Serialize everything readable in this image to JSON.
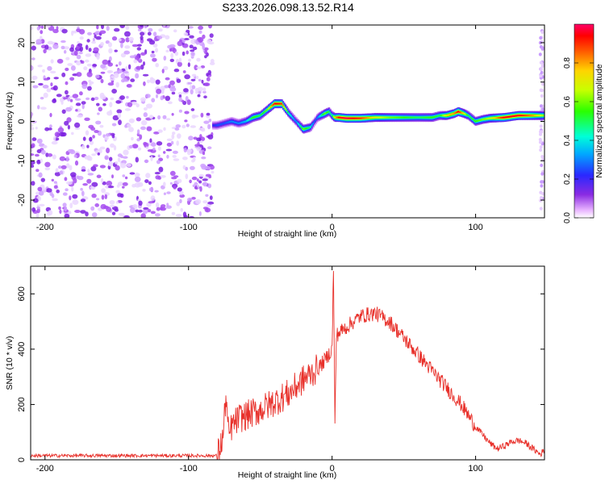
{
  "title": "S233.2026.098.13.52.R14",
  "chart_data": [
    {
      "type": "heatmap",
      "xlabel": "Height of straight line (km)",
      "ylabel": "Frequency (Hz)",
      "xlim": [
        -210,
        148
      ],
      "ylim": [
        -24.5,
        24.5
      ],
      "xticks": [
        -200,
        -100,
        0,
        100
      ],
      "yticks": [
        -20,
        -10,
        0,
        10,
        20
      ],
      "colorbar": {
        "label": "Normalized spectral amplitude",
        "range": [
          0,
          1
        ],
        "ticks": [
          0.0,
          0.2,
          0.4,
          0.6,
          0.8
        ]
      },
      "noise_region_km": [
        -210,
        -83
      ],
      "ridge": {
        "x": [
          -83,
          -80,
          -75,
          -70,
          -65,
          -60,
          -55,
          -50,
          -45,
          -40,
          -35,
          -30,
          -25,
          -20,
          -15,
          -12,
          -10,
          -5,
          -2,
          0,
          2,
          5,
          10,
          20,
          30,
          40,
          50,
          60,
          70,
          75,
          80,
          85,
          88,
          92,
          95,
          100,
          105,
          110,
          120,
          130,
          140,
          148
        ],
        "freq": [
          -1,
          -1,
          -0.5,
          0,
          -0.5,
          0,
          1,
          1.5,
          3,
          4.5,
          4.5,
          2,
          0,
          -2,
          -1.5,
          0,
          1,
          2,
          2.5,
          1.5,
          1,
          1,
          0.8,
          0.8,
          1,
          1,
          1,
          1,
          1,
          1.5,
          1.5,
          2,
          2.5,
          2,
          1.5,
          0,
          0.5,
          0.8,
          1,
          1.5,
          1.5,
          1.5
        ],
        "amp": [
          0.2,
          0.25,
          0.25,
          0.3,
          0.3,
          0.35,
          0.55,
          0.5,
          0.6,
          0.95,
          0.9,
          0.45,
          0.3,
          0.6,
          0.45,
          0.25,
          0.3,
          0.6,
          0.5,
          0.45,
          0.75,
          0.95,
          0.98,
          0.9,
          0.7,
          0.6,
          0.55,
          0.5,
          0.55,
          0.5,
          0.75,
          0.8,
          0.95,
          0.7,
          0.5,
          0.55,
          0.6,
          0.65,
          0.95,
          0.95,
          0.8,
          0.6
        ]
      }
    },
    {
      "type": "line",
      "xlabel": "Height of straight line (km)",
      "ylabel": "SNR (10 * v/v)",
      "xlim": [
        -210,
        148
      ],
      "ylim": [
        0,
        700
      ],
      "xticks": [
        -200,
        -100,
        0,
        100
      ],
      "yticks": [
        0,
        200,
        400,
        600
      ],
      "series": [
        {
          "name": "SNR",
          "color": "#e8302a",
          "x": [
            -210,
            -180,
            -150,
            -120,
            -90,
            -80,
            -76,
            -74,
            -72,
            -70,
            -65,
            -60,
            -50,
            -40,
            -30,
            -20,
            -10,
            -5,
            0,
            1,
            2,
            3,
            5,
            10,
            20,
            30,
            40,
            50,
            60,
            70,
            80,
            90,
            100,
            110,
            115,
            120,
            125,
            130,
            135,
            140,
            145,
            148
          ],
          "y": [
            15,
            15,
            15,
            15,
            15,
            15,
            80,
            230,
            80,
            120,
            150,
            160,
            180,
            210,
            240,
            290,
            330,
            360,
            400,
            700,
            120,
            450,
            460,
            480,
            520,
            530,
            500,
            440,
            380,
            320,
            260,
            200,
            120,
            60,
            40,
            50,
            65,
            70,
            60,
            40,
            20,
            35
          ]
        }
      ]
    }
  ]
}
